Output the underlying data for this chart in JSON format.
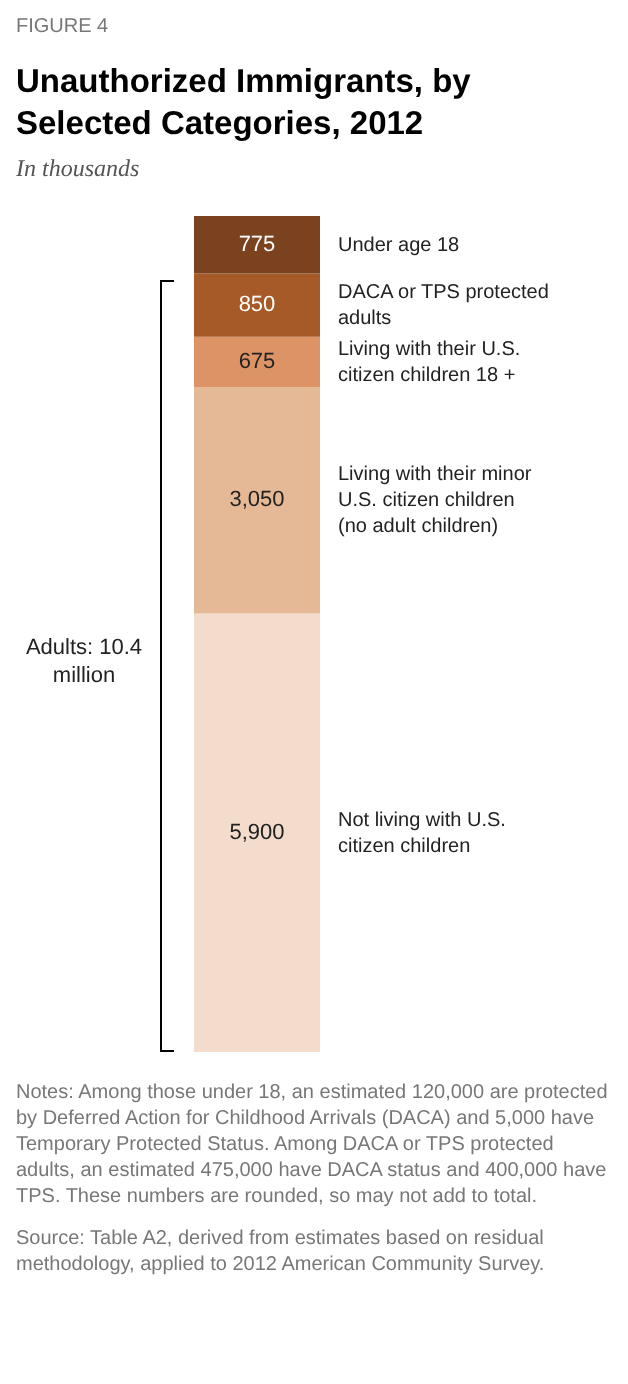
{
  "chart_data": {
    "type": "bar",
    "stacked": true,
    "title": "Unauthorized Immigrants, by Selected Categories, 2012",
    "subtitle": "In thousands",
    "categories": [
      null
    ],
    "series": [
      {
        "name": "Not living with U.S. citizen children",
        "color": "#f3dccb",
        "values": [
          5900
        ],
        "value_labels": [
          "5,900"
        ]
      },
      {
        "name": "Living with their minor U.S. citizen children (no adult children)",
        "color": "#e6b996",
        "values": [
          3050
        ],
        "value_labels": [
          "3,050"
        ]
      },
      {
        "name": "Living with their U.S. citizen children 18 +",
        "color": "#dc9466",
        "values": [
          675
        ],
        "value_labels": [
          "675"
        ]
      },
      {
        "name": "DACA or TPS protected adults",
        "color": "#a65a28",
        "values": [
          850
        ],
        "value_labels": [
          "850"
        ]
      },
      {
        "name": "Under age 18",
        "color": "#7b4220",
        "values": [
          775
        ],
        "value_labels": [
          "775"
        ]
      }
    ],
    "annotations": [
      "FIGURE 4",
      "Adults: 10.4 million",
      "Notes: Among those under 18, an estimated 120,000 are protected by Deferred Action for Childhood Arrivals (DACA) and 5,000 have Temporary Protected Status. Among DACA or TPS protected adults, an estimated 475,000 have DACA status and 400,000 have TPS. These numbers are rounded, so may not add to total.",
      "Source: Table A2, derived from estimates based on residual methodology, applied to 2012 American Community Survey."
    ]
  }
}
